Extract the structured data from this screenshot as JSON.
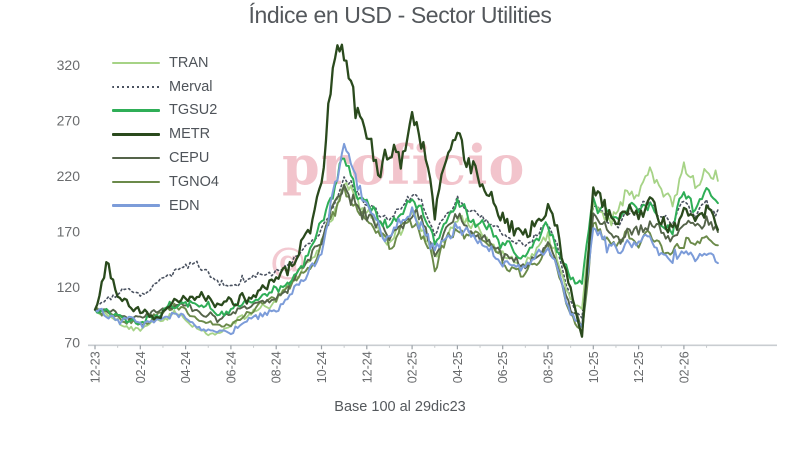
{
  "title": "Índice en USD - Sector Utilities",
  "caption": "Base 100 al 29dic23",
  "watermark": {
    "line1": "proficio",
    "line2": "@"
  },
  "colors": {
    "background": "#ffffff",
    "title_text": "#54585c",
    "axis_line": "#c9cdd1",
    "tick_mark": "#9aa0a6",
    "axis_labels": "#6a6c6e",
    "watermark_pink": "#e794a3"
  },
  "chart_data": {
    "type": "line",
    "title": "Índice en USD - Sector Utilities",
    "xlabel": "",
    "ylabel": "",
    "caption": "Base 100 al 29dic23",
    "grid": false,
    "legend_position": "top-left",
    "ylim": [
      70,
      340
    ],
    "y_ticks": [
      70,
      120,
      170,
      220,
      270,
      320
    ],
    "x_unit": "months since 29dic23",
    "x_step": 0.5,
    "x_tick_positions": [
      0,
      2,
      4,
      6,
      8,
      10,
      12,
      14,
      16,
      18,
      20,
      22,
      24,
      26
    ],
    "x_tick_labels": [
      "12-23",
      "02-24",
      "04-24",
      "06-24",
      "08-24",
      "10-24",
      "12-24",
      "02-25",
      "04-25",
      "06-25",
      "08-25",
      "10-25",
      "12-25",
      "02-26"
    ],
    "series": [
      {
        "name": "TRAN",
        "color": "#a6d386",
        "style": "solid",
        "width": 1.8,
        "volatility": 0.05,
        "values": [
          100,
          94,
          88,
          84,
          82,
          87,
          92,
          96,
          90,
          84,
          80,
          78,
          84,
          90,
          96,
          102,
          108,
          118,
          130,
          145,
          160,
          185,
          210,
          195,
          185,
          172,
          165,
          178,
          188,
          175,
          152,
          172,
          186,
          176,
          168,
          160,
          152,
          146,
          142,
          155,
          168,
          140,
          108,
          100,
          195,
          185,
          192,
          210,
          205,
          225,
          212,
          200,
          225,
          212,
          228,
          216
        ]
      },
      {
        "name": "Merval",
        "color": "#4a5260",
        "style": "dotted",
        "width": 1.6,
        "volatility": 0.035,
        "values": [
          100,
          108,
          114,
          118,
          112,
          120,
          128,
          134,
          140,
          138,
          132,
          124,
          120,
          126,
          130,
          134,
          136,
          142,
          150,
          162,
          175,
          198,
          218,
          205,
          196,
          188,
          180,
          192,
          205,
          190,
          168,
          188,
          202,
          192,
          183,
          176,
          170,
          163,
          158,
          168,
          178,
          148,
          108,
          94,
          192,
          180,
          172,
          185,
          190,
          200,
          185,
          178,
          196,
          188,
          196,
          190
        ]
      },
      {
        "name": "TGSU2",
        "color": "#2fae57",
        "style": "solid",
        "width": 2.0,
        "volatility": 0.05,
        "values": [
          100,
          97,
          93,
          90,
          88,
          94,
          99,
          104,
          108,
          105,
          100,
          95,
          99,
          104,
          108,
          113,
          118,
          126,
          138,
          155,
          172,
          205,
          232,
          212,
          200,
          185,
          175,
          190,
          200,
          185,
          160,
          180,
          196,
          185,
          178,
          170,
          162,
          155,
          150,
          162,
          175,
          152,
          128,
          122,
          198,
          185,
          178,
          192,
          188,
          198,
          182,
          175,
          205,
          190,
          205,
          196
        ]
      },
      {
        "name": "METR",
        "color": "#2a4a1d",
        "style": "solid",
        "width": 2.3,
        "volatility": 0.072,
        "values": [
          100,
          142,
          112,
          103,
          96,
          92,
          97,
          106,
          112,
          118,
          114,
          104,
          107,
          110,
          114,
          120,
          126,
          135,
          150,
          175,
          215,
          310,
          335,
          282,
          250,
          235,
          248,
          232,
          278,
          255,
          188,
          228,
          258,
          235,
          222,
          205,
          185,
          172,
          162,
          175,
          192,
          160,
          118,
          76,
          208,
          188,
          172,
          196,
          186,
          202,
          182,
          172,
          188,
          180,
          192,
          172
        ]
      },
      {
        "name": "CEPU",
        "color": "#55644a",
        "style": "solid",
        "width": 1.9,
        "volatility": 0.05,
        "values": [
          100,
          98,
          95,
          92,
          90,
          95,
          100,
          105,
          102,
          98,
          96,
          92,
          95,
          99,
          103,
          108,
          113,
          121,
          132,
          148,
          165,
          192,
          212,
          196,
          185,
          175,
          168,
          180,
          190,
          178,
          148,
          170,
          184,
          174,
          166,
          158,
          150,
          143,
          138,
          150,
          162,
          135,
          100,
          85,
          185,
          172,
          162,
          176,
          170,
          180,
          168,
          160,
          175,
          168,
          178,
          170
        ]
      },
      {
        "name": "TGNO4",
        "color": "#6b8a4a",
        "style": "solid",
        "width": 1.9,
        "volatility": 0.055,
        "values": [
          100,
          96,
          92,
          89,
          87,
          92,
          97,
          102,
          100,
          92,
          88,
          84,
          88,
          94,
          100,
          105,
          110,
          118,
          128,
          143,
          158,
          185,
          205,
          190,
          178,
          168,
          160,
          172,
          182,
          170,
          140,
          160,
          178,
          168,
          160,
          152,
          144,
          137,
          132,
          144,
          156,
          128,
          95,
          78,
          178,
          165,
          155,
          168,
          162,
          172,
          158,
          150,
          165,
          156,
          166,
          158
        ]
      },
      {
        "name": "EDN",
        "color": "#7c9cd9",
        "style": "solid",
        "width": 2.0,
        "volatility": 0.055,
        "values": [
          100,
          96,
          93,
          90,
          88,
          91,
          94,
          97,
          93,
          87,
          84,
          80,
          83,
          88,
          92,
          96,
          100,
          108,
          120,
          138,
          155,
          200,
          245,
          215,
          195,
          178,
          165,
          175,
          185,
          172,
          150,
          165,
          178,
          168,
          160,
          152,
          144,
          138,
          133,
          145,
          158,
          130,
          98,
          86,
          180,
          165,
          152,
          162,
          158,
          168,
          152,
          145,
          155,
          145,
          152,
          142
        ]
      }
    ]
  }
}
